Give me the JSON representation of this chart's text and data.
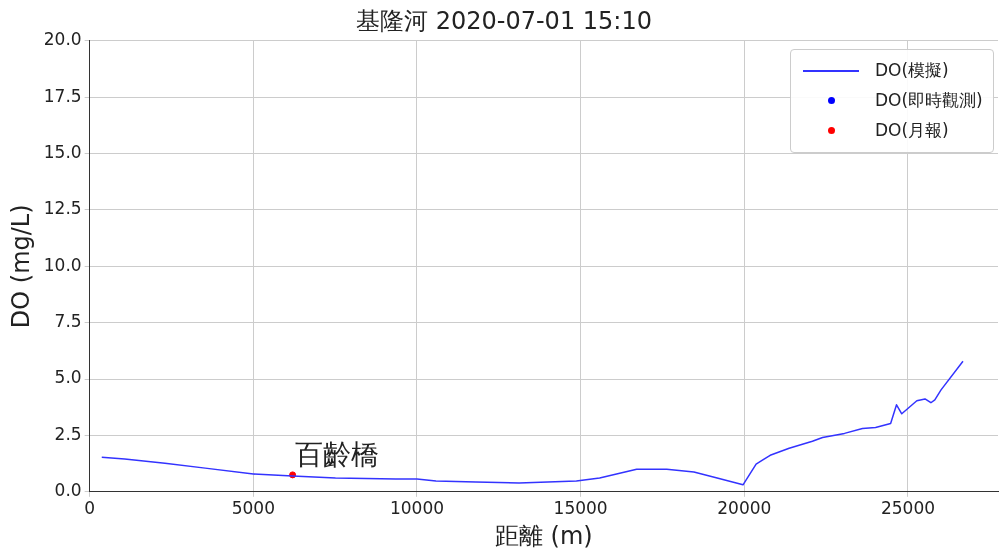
{
  "chart_data": {
    "type": "line",
    "title": "基隆河 2020-07-01 15:10",
    "xlabel": "距離 (m)",
    "ylabel": "DO (mg/L)",
    "xlim": [
      0,
      27750
    ],
    "xticks": [
      0,
      5000,
      10000,
      15000,
      20000,
      25000
    ],
    "ylim": [
      0,
      20
    ],
    "yticks": [
      {
        "value": 0,
        "label": "0.0"
      },
      {
        "value": 2.5,
        "label": "2.5"
      },
      {
        "value": 5,
        "label": "5.0"
      },
      {
        "value": 7.5,
        "label": "7.5"
      },
      {
        "value": 10,
        "label": "10.0"
      },
      {
        "value": 12.5,
        "label": "12.5"
      },
      {
        "value": 15,
        "label": "15.0"
      },
      {
        "value": 17.5,
        "label": "17.5"
      },
      {
        "value": 20,
        "label": "20.0"
      }
    ],
    "grid": true,
    "legend": "top right",
    "line_style": "solid",
    "annotations": [
      {
        "text": "百齡橋",
        "x": 6200,
        "y": 0.75
      }
    ],
    "series": [
      {
        "name": "DO(模擬)",
        "color": "#3333ff",
        "x": [
          370,
          1070,
          2300,
          3530,
          5000,
          6200,
          7510,
          9350,
          10000,
          10580,
          11800,
          13120,
          14870,
          15580,
          16710,
          17630,
          18460,
          19170,
          19960,
          20360,
          20790,
          21370,
          22080,
          22390,
          23060,
          23610,
          24010,
          24470,
          24650,
          24810,
          25270,
          25520,
          25700,
          25820,
          26010,
          26680
        ],
        "values": [
          1.53,
          1.45,
          1.27,
          1.05,
          0.79,
          0.7,
          0.61,
          0.57,
          0.57,
          0.48,
          0.44,
          0.39,
          0.48,
          0.61,
          1.0,
          1.0,
          0.88,
          0.61,
          0.31,
          1.23,
          1.62,
          1.93,
          2.24,
          2.41,
          2.59,
          2.81,
          2.85,
          3.03,
          3.86,
          3.46,
          4.04,
          4.12,
          3.95,
          4.08,
          4.52,
          5.79
        ]
      },
      {
        "name": "DO(即時觀測)",
        "type": "scatter",
        "marker": "circle",
        "color": "#0000ff"
      },
      {
        "name": "DO(月報)",
        "type": "scatter",
        "marker": "circle",
        "color": "#ff0000",
        "x": [
          6200
        ],
        "values": [
          0.75
        ]
      }
    ]
  }
}
